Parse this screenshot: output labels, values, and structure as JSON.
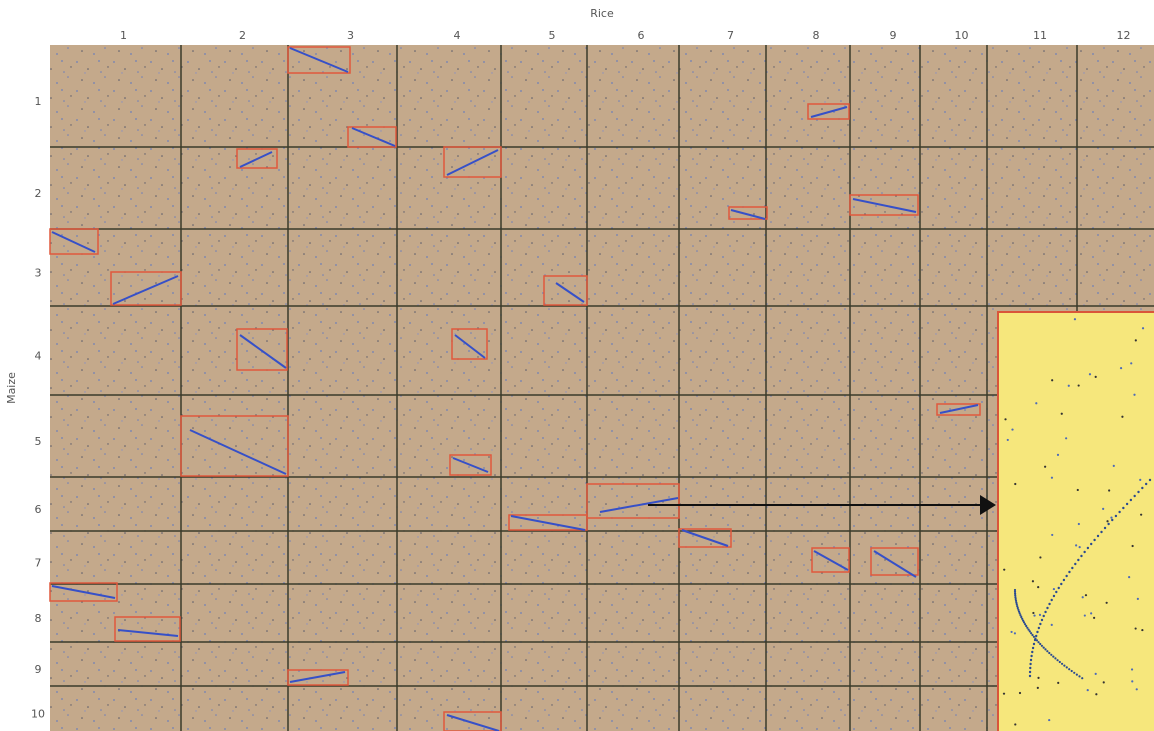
{
  "x_axis": {
    "label": "Rice",
    "columns": [
      "1",
      "2",
      "3",
      "4",
      "5",
      "6",
      "7",
      "8",
      "9",
      "10",
      "11",
      "12"
    ]
  },
  "y_axis": {
    "label": "Maize",
    "rows": [
      "1",
      "2",
      "3",
      "4",
      "5",
      "6",
      "7",
      "8",
      "9",
      "10"
    ]
  }
}
